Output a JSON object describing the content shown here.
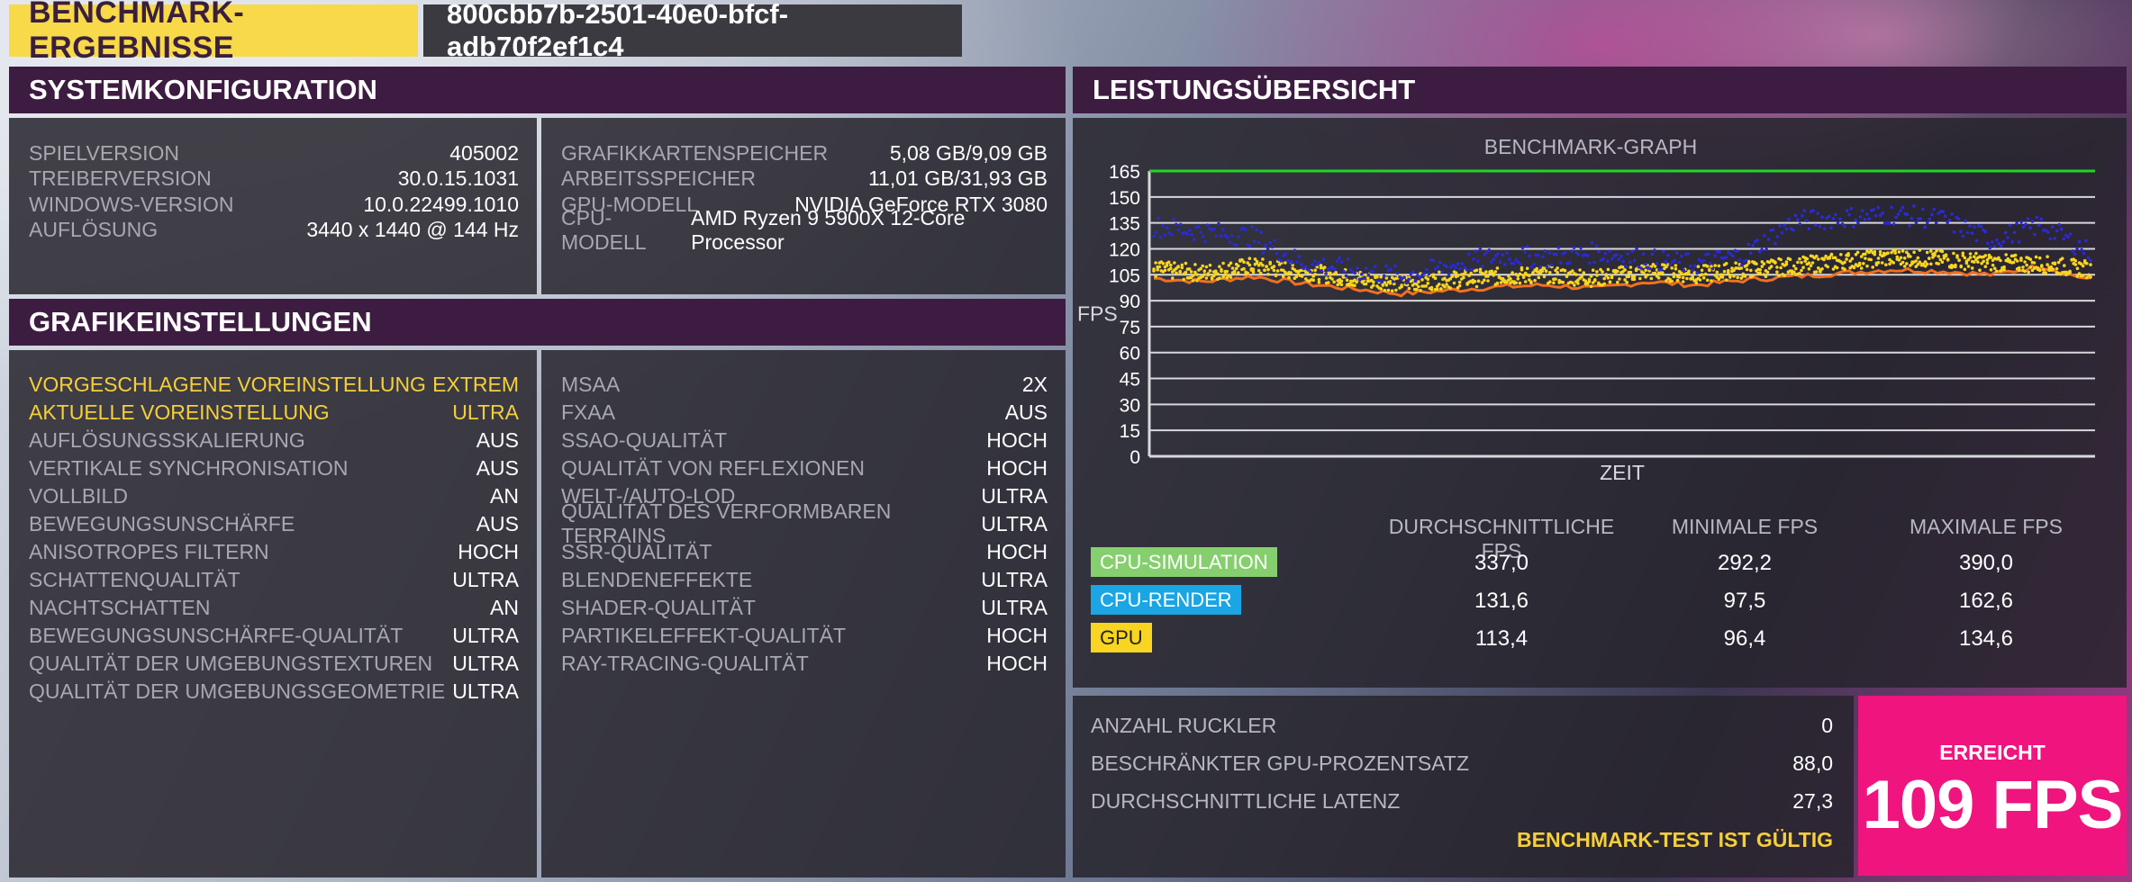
{
  "header": {
    "title": "BENCHMARK-ERGEBNISSE",
    "run_id": "800cbb7b-2501-40e0-bfcf-adb70f2ef1c4"
  },
  "system": {
    "title": "SYSTEMKONFIGURATION",
    "left": [
      {
        "label": "SPIELVERSION",
        "value": "405002"
      },
      {
        "label": "TREIBERVERSION",
        "value": "30.0.15.1031"
      },
      {
        "label": "WINDOWS-VERSION",
        "value": "10.0.22499.1010"
      },
      {
        "label": "AUFLÖSUNG",
        "value": "3440 x 1440 @ 144 Hz"
      }
    ],
    "right": [
      {
        "label": "GRAFIKKARTENSPEICHER",
        "value": "5,08 GB/9,09 GB"
      },
      {
        "label": "ARBEITSSPEICHER",
        "value": "11,01 GB/31,93 GB"
      },
      {
        "label": "GPU-MODELL",
        "value": "NVIDIA GeForce RTX 3080"
      },
      {
        "label": "CPU-MODELL",
        "value": "AMD Ryzen 9 5900X 12-Core Processor"
      }
    ]
  },
  "graphics": {
    "title": "GRAFIKEINSTELLUNGEN",
    "left": [
      {
        "label": "VORGESCHLAGENE VOREINSTELLUNG",
        "value": "EXTREM"
      },
      {
        "label": "AKTUELLE VOREINSTELLUNG",
        "value": "ULTRA"
      },
      {
        "label": "AUFLÖSUNGSSKALIERUNG",
        "value": "AUS"
      },
      {
        "label": "VERTIKALE SYNCHRONISATION",
        "value": "AUS"
      },
      {
        "label": "VOLLBILD",
        "value": "AN"
      },
      {
        "label": "BEWEGUNGSUNSCHÄRFE",
        "value": "AUS"
      },
      {
        "label": "ANISOTROPES FILTERN",
        "value": "HOCH"
      },
      {
        "label": "SCHATTENQUALITÄT",
        "value": "ULTRA"
      },
      {
        "label": "NACHTSCHATTEN",
        "value": "AN"
      },
      {
        "label": "BEWEGUNGSUNSCHÄRFE-QUALITÄT",
        "value": "ULTRA"
      },
      {
        "label": "QUALITÄT DER UMGEBUNGSTEXTUREN",
        "value": "ULTRA"
      },
      {
        "label": "QUALITÄT DER UMGEBUNGSGEOMETRIE",
        "value": "ULTRA"
      }
    ],
    "right": [
      {
        "label": "MSAA",
        "value": "2X"
      },
      {
        "label": "FXAA",
        "value": "AUS"
      },
      {
        "label": "SSAO-QUALITÄT",
        "value": "HOCH"
      },
      {
        "label": "QUALITÄT VON REFLEXIONEN",
        "value": "HOCH"
      },
      {
        "label": "WELT-/AUTO-LOD",
        "value": "ULTRA"
      },
      {
        "label": "QUALITÄT DES VERFORMBAREN TERRAINS",
        "value": "ULTRA"
      },
      {
        "label": "SSR-QUALITÄT",
        "value": "HOCH"
      },
      {
        "label": "BLENDENEFFEKTE",
        "value": "ULTRA"
      },
      {
        "label": "SHADER-QUALITÄT",
        "value": "ULTRA"
      },
      {
        "label": "PARTIKELEFFEKT-QUALITÄT",
        "value": "HOCH"
      },
      {
        "label": "RAY-TRACING-QUALITÄT",
        "value": "HOCH"
      }
    ]
  },
  "performance": {
    "title": "LEISTUNGSÜBERSICHT",
    "col_avg": "DURCHSCHNITTLICHE FPS",
    "col_min": "MINIMALE FPS",
    "col_max": "MAXIMALE FPS",
    "rows": [
      {
        "name": "CPU-SIMULATION",
        "color": "#86cf6e",
        "avg": "337,0",
        "min": "292,2",
        "max": "390,0"
      },
      {
        "name": "CPU-RENDER",
        "color": "#1aa5e4",
        "avg": "131,6",
        "min": "97,5",
        "max": "162,6"
      },
      {
        "name": "GPU",
        "color": "#f7d520",
        "avg": "113,4",
        "min": "96,4",
        "max": "134,6"
      }
    ]
  },
  "results": {
    "rows": [
      {
        "label": "ANZAHL RUCKLER",
        "value": "0"
      },
      {
        "label": "BESCHRÄNKTER GPU-PROZENTSATZ",
        "value": "88,0"
      },
      {
        "label": "DURCHSCHNITTLICHE LATENZ",
        "value": "27,3"
      }
    ],
    "valid_text": "BENCHMARK-TEST IST GÜLTIG",
    "achieved_label": "ERREICHT",
    "achieved_value": "109 FPS"
  },
  "chart_data": {
    "type": "scatter",
    "title": "BENCHMARK-GRAPH",
    "xlabel": "ZEIT",
    "ylabel": "FPS",
    "ylim": [
      0,
      165
    ],
    "yticks": [
      0,
      15,
      30,
      45,
      60,
      75,
      90,
      105,
      120,
      135,
      150,
      165
    ],
    "target_line": 165,
    "series": [
      {
        "name": "CPU-RENDER",
        "color": "#2a2ad8",
        "values": [
          133,
          130,
          127,
          112,
          108,
          104,
          110,
          116,
          115,
          118,
          114,
          111,
          117,
          136,
          138,
          140,
          137,
          125,
          134,
          118
        ]
      },
      {
        "name": "GPU",
        "color": "#f7d520",
        "values": [
          108,
          106,
          110,
          107,
          103,
          100,
          102,
          104,
          105,
          103,
          107,
          105,
          108,
          110,
          113,
          115,
          114,
          112,
          111,
          108
        ]
      },
      {
        "name": "GPU-min",
        "color": "#f07020",
        "values": [
          103,
          101,
          104,
          100,
          97,
          94,
          96,
          98,
          99,
          97,
          101,
          99,
          102,
          104,
          106,
          108,
          107,
          105,
          110,
          102
        ]
      }
    ]
  }
}
